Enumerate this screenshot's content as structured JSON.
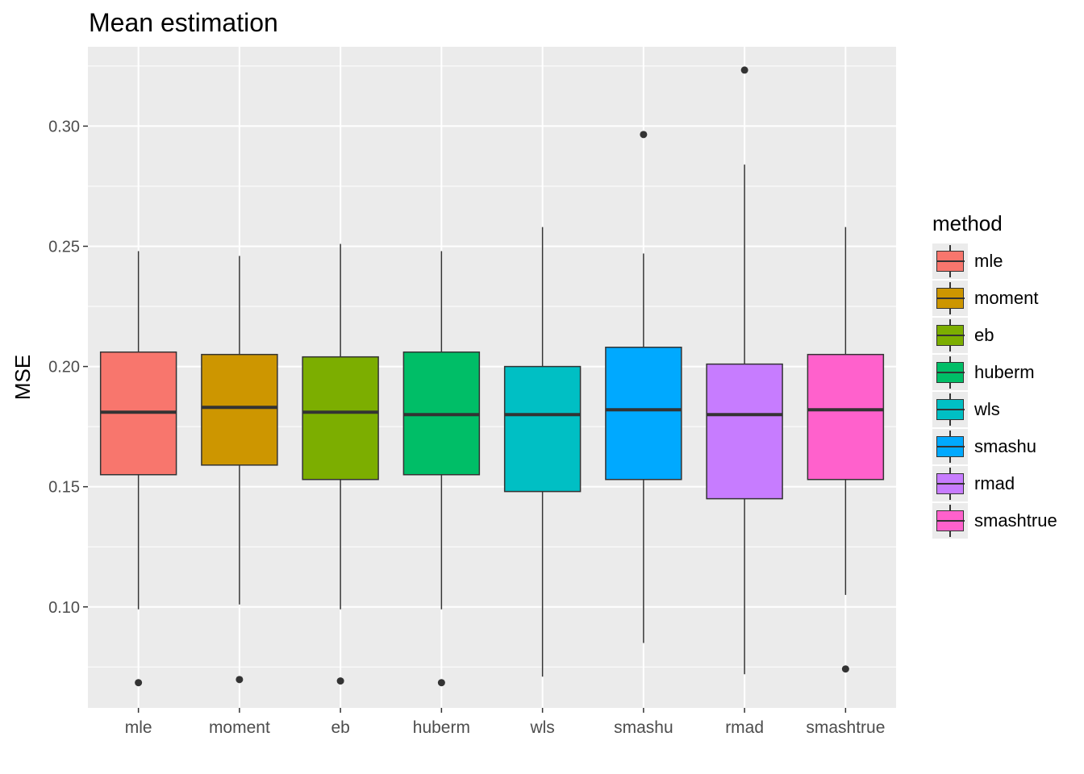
{
  "chart_data": {
    "type": "boxplot",
    "title": "Mean estimation",
    "xlabel": "",
    "ylabel": "MSE",
    "ylim": [
      0.058,
      0.333
    ],
    "yticks": [
      0.1,
      0.15,
      0.2,
      0.25,
      0.3
    ],
    "ytick_labels": [
      "0.10",
      "0.15",
      "0.20",
      "0.25",
      "0.30"
    ],
    "grid": true,
    "legend": {
      "title": "method",
      "placement": "right"
    },
    "categories": [
      "mle",
      "moment",
      "eb",
      "huberm",
      "wls",
      "smashu",
      "rmad",
      "smashtrue"
    ],
    "colors": [
      "#F8766D",
      "#CD9600",
      "#7CAE00",
      "#00BE67",
      "#00BFC4",
      "#00A9FF",
      "#C77CFF",
      "#FF61CC"
    ],
    "boxes": [
      {
        "name": "mle",
        "min": 0.099,
        "q1": 0.155,
        "median": 0.181,
        "q3": 0.206,
        "max": 0.248,
        "outliers": [
          0.0685
        ]
      },
      {
        "name": "moment",
        "min": 0.101,
        "q1": 0.159,
        "median": 0.183,
        "q3": 0.205,
        "max": 0.246,
        "outliers": [
          0.0698
        ]
      },
      {
        "name": "eb",
        "min": 0.099,
        "q1": 0.153,
        "median": 0.181,
        "q3": 0.204,
        "max": 0.251,
        "outliers": [
          0.0692
        ]
      },
      {
        "name": "huberm",
        "min": 0.099,
        "q1": 0.155,
        "median": 0.18,
        "q3": 0.206,
        "max": 0.248,
        "outliers": [
          0.0685
        ]
      },
      {
        "name": "wls",
        "min": 0.071,
        "q1": 0.148,
        "median": 0.18,
        "q3": 0.2,
        "max": 0.258,
        "outliers": []
      },
      {
        "name": "smashu",
        "min": 0.085,
        "q1": 0.153,
        "median": 0.182,
        "q3": 0.208,
        "max": 0.247,
        "outliers": [
          0.2965
        ]
      },
      {
        "name": "rmad",
        "min": 0.072,
        "q1": 0.145,
        "median": 0.18,
        "q3": 0.201,
        "max": 0.284,
        "outliers": [
          0.3233
        ]
      },
      {
        "name": "smashtrue",
        "min": 0.105,
        "q1": 0.153,
        "median": 0.182,
        "q3": 0.205,
        "max": 0.258,
        "outliers": [
          0.0742
        ]
      }
    ]
  }
}
